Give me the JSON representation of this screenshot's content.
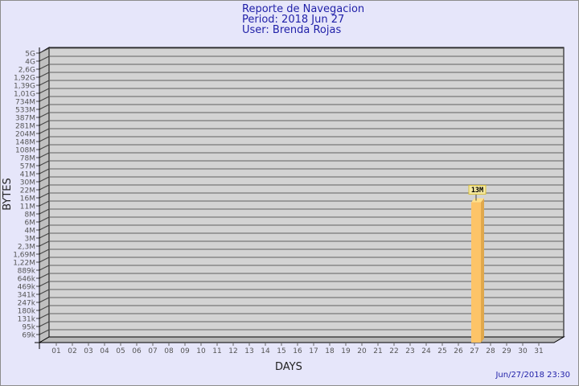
{
  "header": {
    "title": "Reporte de Navegacion",
    "period": "Period: 2018 Jun 27",
    "user": "User: Brenda Rojas"
  },
  "timestamp": "Jun/27/2018 23:30",
  "chart_data": {
    "type": "bar",
    "xlabel": "DAYS",
    "ylabel": "BYTES",
    "yscale": "log",
    "grid": true,
    "y_tick_labels": [
      "5G",
      "4G",
      "2,6G",
      "1,92G",
      "1,39G",
      "1,01G",
      "734M",
      "533M",
      "387M",
      "281M",
      "204M",
      "148M",
      "108M",
      "78M",
      "57M",
      "41M",
      "30M",
      "22M",
      "16M",
      "11M",
      "8M",
      "6M",
      "4M",
      "3M",
      "2,3M",
      "1,69M",
      "1,22M",
      "889k",
      "646k",
      "469k",
      "341k",
      "247k",
      "180k",
      "131k",
      "95k",
      "69k"
    ],
    "categories": [
      "01",
      "02",
      "03",
      "04",
      "05",
      "06",
      "07",
      "08",
      "09",
      "10",
      "11",
      "12",
      "13",
      "14",
      "15",
      "16",
      "17",
      "18",
      "19",
      "20",
      "21",
      "22",
      "23",
      "24",
      "25",
      "26",
      "27",
      "28",
      "29",
      "30",
      "31"
    ],
    "values": [
      null,
      null,
      null,
      null,
      null,
      null,
      null,
      null,
      null,
      null,
      null,
      null,
      null,
      null,
      null,
      null,
      null,
      null,
      null,
      null,
      null,
      null,
      null,
      null,
      null,
      null,
      13000000,
      null,
      null,
      null,
      null
    ],
    "data_labels": {
      "27": "13M"
    },
    "colors": {
      "bar": "#fdc468",
      "bar_side": "#e0a84c",
      "bar_top": "#ffe08a",
      "wall": "#d3d3d3",
      "background": "#e6e6fa",
      "label_box": "#f5e9a0"
    }
  }
}
